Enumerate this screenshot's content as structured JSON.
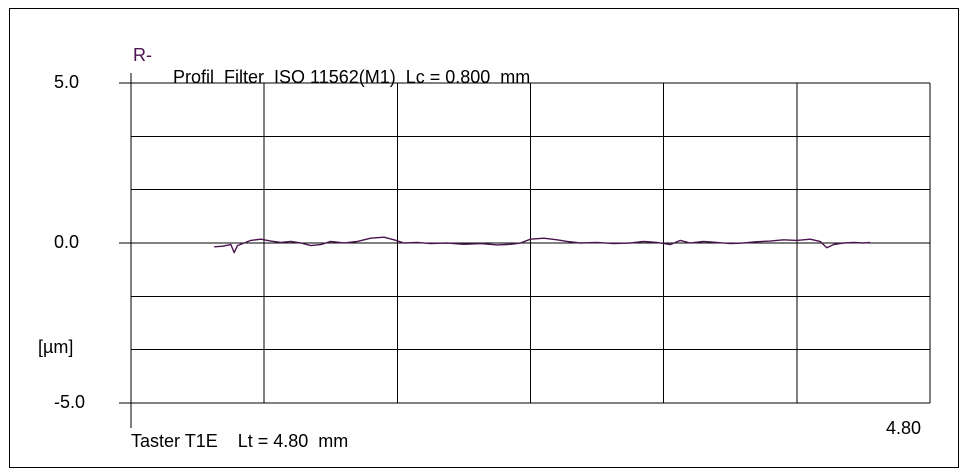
{
  "title": {
    "prefix": "R-",
    "text": "Profil  Filter  ISO 11562(M1)  Lc = 0.800  mm"
  },
  "y_tick_labels": [
    "5.0",
    "0.0",
    "-5.0"
  ],
  "y_unit_label": "[µm]",
  "probe_label": "Taster T1E",
  "length_label": "Lt = 4.80  mm",
  "x_end_label": "4.80",
  "colors": {
    "profile": "#4b1450",
    "grid": "#000000"
  },
  "chart_data": {
    "type": "line",
    "title": "R-  Profil  Filter  ISO 11562(M1)  Lc = 0.800  mm",
    "xlabel": "Taster T1E    Lt = 4.80  mm",
    "ylabel": "[µm]",
    "xlim": [
      0,
      4.8
    ],
    "ylim": [
      -5,
      5
    ],
    "grid": true,
    "y_ticks": [
      5.0,
      0.0,
      -5.0
    ],
    "series": [
      {
        "values": [
          [
            0.5,
            -0.12
          ],
          [
            0.55,
            -0.1
          ],
          [
            0.6,
            -0.05
          ],
          [
            0.62,
            -0.3
          ],
          [
            0.64,
            -0.08
          ],
          [
            0.68,
            0.0
          ],
          [
            0.72,
            0.08
          ],
          [
            0.78,
            0.12
          ],
          [
            0.84,
            0.06
          ],
          [
            0.9,
            0.02
          ],
          [
            0.96,
            0.05
          ],
          [
            1.02,
            0.0
          ],
          [
            1.08,
            -0.08
          ],
          [
            1.14,
            -0.05
          ],
          [
            1.2,
            0.05
          ],
          [
            1.28,
            0.0
          ],
          [
            1.36,
            0.05
          ],
          [
            1.44,
            0.15
          ],
          [
            1.52,
            0.18
          ],
          [
            1.58,
            0.1
          ],
          [
            1.64,
            0.0
          ],
          [
            1.72,
            0.02
          ],
          [
            1.8,
            -0.02
          ],
          [
            1.9,
            0.0
          ],
          [
            2.0,
            -0.04
          ],
          [
            2.1,
            -0.02
          ],
          [
            2.2,
            -0.06
          ],
          [
            2.28,
            -0.04
          ],
          [
            2.34,
            0.0
          ],
          [
            2.4,
            0.12
          ],
          [
            2.48,
            0.15
          ],
          [
            2.56,
            0.1
          ],
          [
            2.62,
            0.05
          ],
          [
            2.7,
            0.0
          ],
          [
            2.8,
            0.02
          ],
          [
            2.9,
            -0.02
          ],
          [
            3.0,
            0.0
          ],
          [
            3.08,
            0.05
          ],
          [
            3.16,
            0.02
          ],
          [
            3.24,
            -0.05
          ],
          [
            3.3,
            0.08
          ],
          [
            3.36,
            0.0
          ],
          [
            3.44,
            0.05
          ],
          [
            3.52,
            0.02
          ],
          [
            3.6,
            -0.02
          ],
          [
            3.68,
            0.0
          ],
          [
            3.76,
            0.04
          ],
          [
            3.84,
            0.06
          ],
          [
            3.92,
            0.1
          ],
          [
            4.0,
            0.08
          ],
          [
            4.08,
            0.12
          ],
          [
            4.14,
            0.05
          ],
          [
            4.18,
            -0.15
          ],
          [
            4.22,
            -0.05
          ],
          [
            4.28,
            0.0
          ],
          [
            4.34,
            0.02
          ],
          [
            4.4,
            0.0
          ],
          [
            4.44,
            0.02
          ]
        ]
      }
    ]
  }
}
